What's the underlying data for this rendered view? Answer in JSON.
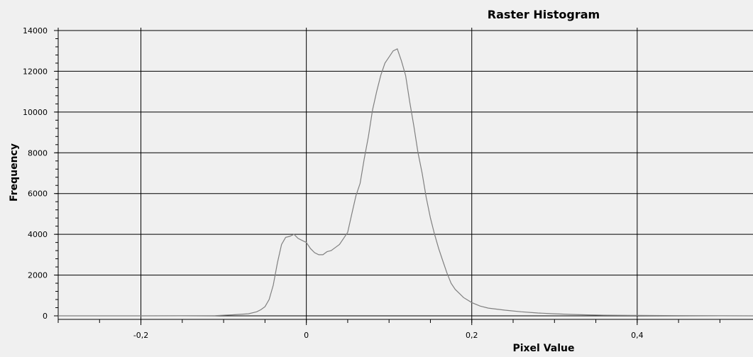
{
  "chart_data": {
    "type": "line",
    "title": "Raster Histogram",
    "xlabel": "Pixel Value",
    "ylabel": "Frequency",
    "xlim": [
      -0.3,
      0.54
    ],
    "ylim": [
      0,
      14000
    ],
    "x_ticks": [
      -0.2,
      0,
      0.2,
      0.4
    ],
    "x_tick_labels": [
      "-0,2",
      "0",
      "0,2",
      "0,4"
    ],
    "y_ticks": [
      0,
      2000,
      4000,
      6000,
      8000,
      10000,
      12000,
      14000
    ],
    "y_tick_labels": [
      "0",
      "2000",
      "4000",
      "6000",
      "8000",
      "10000",
      "12000",
      "14000"
    ],
    "grid": true,
    "line_color": "#808080",
    "series": [
      {
        "x": [
          -0.3,
          -0.2,
          -0.11,
          -0.09,
          -0.07,
          -0.06,
          -0.055,
          -0.05,
          -0.045,
          -0.04,
          -0.035,
          -0.03,
          -0.025,
          -0.02,
          -0.015,
          -0.01,
          -0.005,
          0.0,
          0.005,
          0.01,
          0.015,
          0.02,
          0.025,
          0.03,
          0.035,
          0.04,
          0.045,
          0.05,
          0.055,
          0.06,
          0.065,
          0.07,
          0.075,
          0.08,
          0.085,
          0.09,
          0.095,
          0.1,
          0.105,
          0.11,
          0.115,
          0.12,
          0.125,
          0.13,
          0.135,
          0.14,
          0.145,
          0.15,
          0.155,
          0.16,
          0.165,
          0.17,
          0.175,
          0.18,
          0.185,
          0.19,
          0.2,
          0.21,
          0.22,
          0.24,
          0.26,
          0.28,
          0.3,
          0.32,
          0.34,
          0.36,
          0.4,
          0.45,
          0.5,
          0.54
        ],
        "y": [
          0,
          0,
          10,
          50,
          100,
          200,
          300,
          450,
          800,
          1500,
          2600,
          3500,
          3850,
          3900,
          4000,
          3800,
          3700,
          3600,
          3300,
          3100,
          3000,
          3000,
          3150,
          3200,
          3350,
          3500,
          3800,
          4100,
          5000,
          5900,
          6500,
          7700,
          8800,
          10100,
          11000,
          11800,
          12400,
          12700,
          13000,
          13100,
          12500,
          11800,
          10500,
          9300,
          8000,
          7000,
          5800,
          4800,
          4000,
          3300,
          2700,
          2100,
          1600,
          1300,
          1100,
          900,
          650,
          480,
          380,
          280,
          200,
          140,
          100,
          70,
          50,
          30,
          20,
          10,
          5,
          0
        ]
      }
    ]
  }
}
